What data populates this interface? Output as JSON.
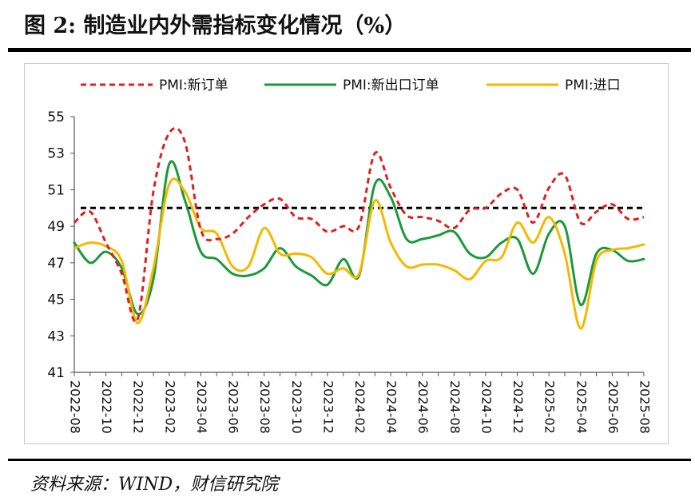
{
  "title": "图 2:  制造业内外需指标变化情况（%）",
  "source": "资料来源：WIND，财信研究院",
  "chart_data": {
    "type": "line",
    "title": "图 2:  制造业内外需指标变化情况（%）",
    "xlabel": "",
    "ylabel": "",
    "ylim": [
      41,
      55
    ],
    "yticks": [
      41,
      43,
      45,
      47,
      49,
      51,
      53,
      55
    ],
    "legend_position": "top",
    "grid": false,
    "reference_line": {
      "value": 50,
      "style": "dashed",
      "color": "#000000"
    },
    "x": [
      "2022-08",
      "2022-09",
      "2022-10",
      "2022-11",
      "2022-12",
      "2023-01",
      "2023-02",
      "2023-03",
      "2023-04",
      "2023-05",
      "2023-06",
      "2023-07",
      "2023-08",
      "2023-09",
      "2023-10",
      "2023-11",
      "2023-12",
      "2024-01",
      "2024-02",
      "2024-03",
      "2024-04",
      "2024-05",
      "2024-06",
      "2024-07",
      "2024-08",
      "2024-09",
      "2024-10",
      "2024-11",
      "2024-12",
      "2025-01",
      "2025-02",
      "2025-03",
      "2025-04",
      "2025-05",
      "2025-06",
      "2025-07",
      "2025-08"
    ],
    "x_tick_labels": [
      "2022-08",
      "2022-10",
      "2022-12",
      "2023-02",
      "2023-04",
      "2023-06",
      "2023-08",
      "2023-10",
      "2023-12",
      "2024-02",
      "2024-04",
      "2024-06",
      "2024-08",
      "2024-10",
      "2024-12",
      "2025-02",
      "2025-04",
      "2025-06",
      "2025-08"
    ],
    "series": [
      {
        "name": "PMI:新订单",
        "color": "#e02020",
        "style": "dashed",
        "values": [
          49.2,
          49.8,
          48.1,
          46.4,
          43.9,
          50.9,
          54.1,
          53.6,
          48.8,
          48.3,
          48.6,
          49.5,
          50.2,
          50.5,
          49.5,
          49.4,
          48.7,
          49.0,
          49.0,
          53.0,
          51.1,
          49.6,
          49.5,
          49.3,
          48.9,
          49.9,
          50.0,
          50.8,
          51.0,
          49.2,
          51.1,
          51.8,
          49.2,
          49.8,
          50.2,
          49.4,
          49.5
        ]
      },
      {
        "name": "PMI:新出口订单",
        "color": "#1a9a3a",
        "style": "solid",
        "values": [
          48.1,
          47.0,
          47.6,
          46.7,
          44.2,
          46.1,
          52.4,
          50.4,
          47.6,
          47.2,
          46.4,
          46.3,
          46.7,
          47.8,
          46.8,
          46.3,
          45.8,
          47.2,
          46.3,
          51.3,
          50.6,
          48.3,
          48.3,
          48.5,
          48.7,
          47.5,
          47.3,
          48.1,
          48.3,
          46.4,
          48.6,
          49.0,
          44.7,
          47.5,
          47.7,
          47.1,
          47.2
        ]
      },
      {
        "name": "PMI:进口",
        "color": "#f5b800",
        "style": "solid",
        "values": [
          47.8,
          48.1,
          47.9,
          47.1,
          43.7,
          46.7,
          51.3,
          50.9,
          48.9,
          48.6,
          46.8,
          46.8,
          48.9,
          47.5,
          47.5,
          47.3,
          46.4,
          46.7,
          46.4,
          50.4,
          48.1,
          46.8,
          46.9,
          46.9,
          46.6,
          46.1,
          47.1,
          47.3,
          49.2,
          48.1,
          49.5,
          47.5,
          43.4,
          47.1,
          47.7,
          47.8,
          48.0
        ]
      }
    ]
  }
}
